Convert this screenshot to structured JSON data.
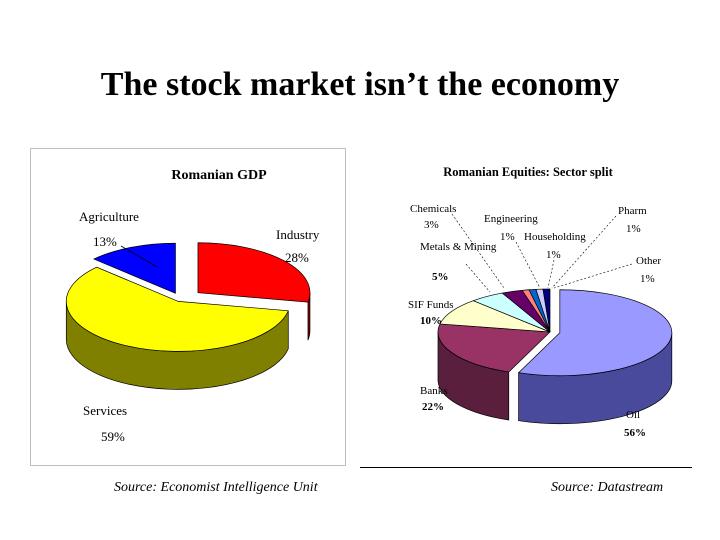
{
  "slide": {
    "title": "The stock market isn’t the economy"
  },
  "sources": {
    "left": "Source: Economist Intelligence Unit",
    "right": "Source: Datastream"
  },
  "chart_data": [
    {
      "type": "pie",
      "title": "Romanian GDP",
      "slices": [
        {
          "name": "Industry",
          "value": 28,
          "label": "28%",
          "color": "#ff0000",
          "side_color": "#800000"
        },
        {
          "name": "Services",
          "value": 59,
          "label": "59%",
          "color": "#ffff00",
          "side_color": "#808000"
        },
        {
          "name": "Agriculture",
          "value": 13,
          "label": "13%",
          "color": "#0000ff",
          "side_color": "#00007a"
        }
      ]
    },
    {
      "type": "pie",
      "title": "Romanian Equities: Sector split",
      "slices": [
        {
          "name": "Oil",
          "value": 56,
          "label": "56%",
          "color": "#9999ff",
          "side_color": "#4a4a9c"
        },
        {
          "name": "Banks",
          "value": 22,
          "label": "22%",
          "color": "#993366",
          "side_color": "#5a1f3d"
        },
        {
          "name": "SIF Funds",
          "value": 10,
          "label": "10%",
          "color": "#ffffcc",
          "side_color": "#a8a880"
        },
        {
          "name": "Metals & Mining",
          "value": 5,
          "label": "5%",
          "color": "#ccffff",
          "side_color": "#7fa8a8"
        },
        {
          "name": "Chemicals",
          "value": 3,
          "label": "3%",
          "color": "#660066",
          "side_color": "#3a003a"
        },
        {
          "name": "Engineering",
          "value": 1,
          "label": "1%",
          "color": "#ff8080",
          "side_color": "#a04a4a"
        },
        {
          "name": "Householding",
          "value": 1,
          "label": "1%",
          "color": "#0066cc",
          "side_color": "#003a78"
        },
        {
          "name": "Pharm",
          "value": 1,
          "label": "1%",
          "color": "#ccccff",
          "side_color": "#7a7aa8"
        },
        {
          "name": "Other",
          "value": 1,
          "label": "1%",
          "color": "#000080",
          "side_color": "#00003a"
        }
      ]
    }
  ]
}
